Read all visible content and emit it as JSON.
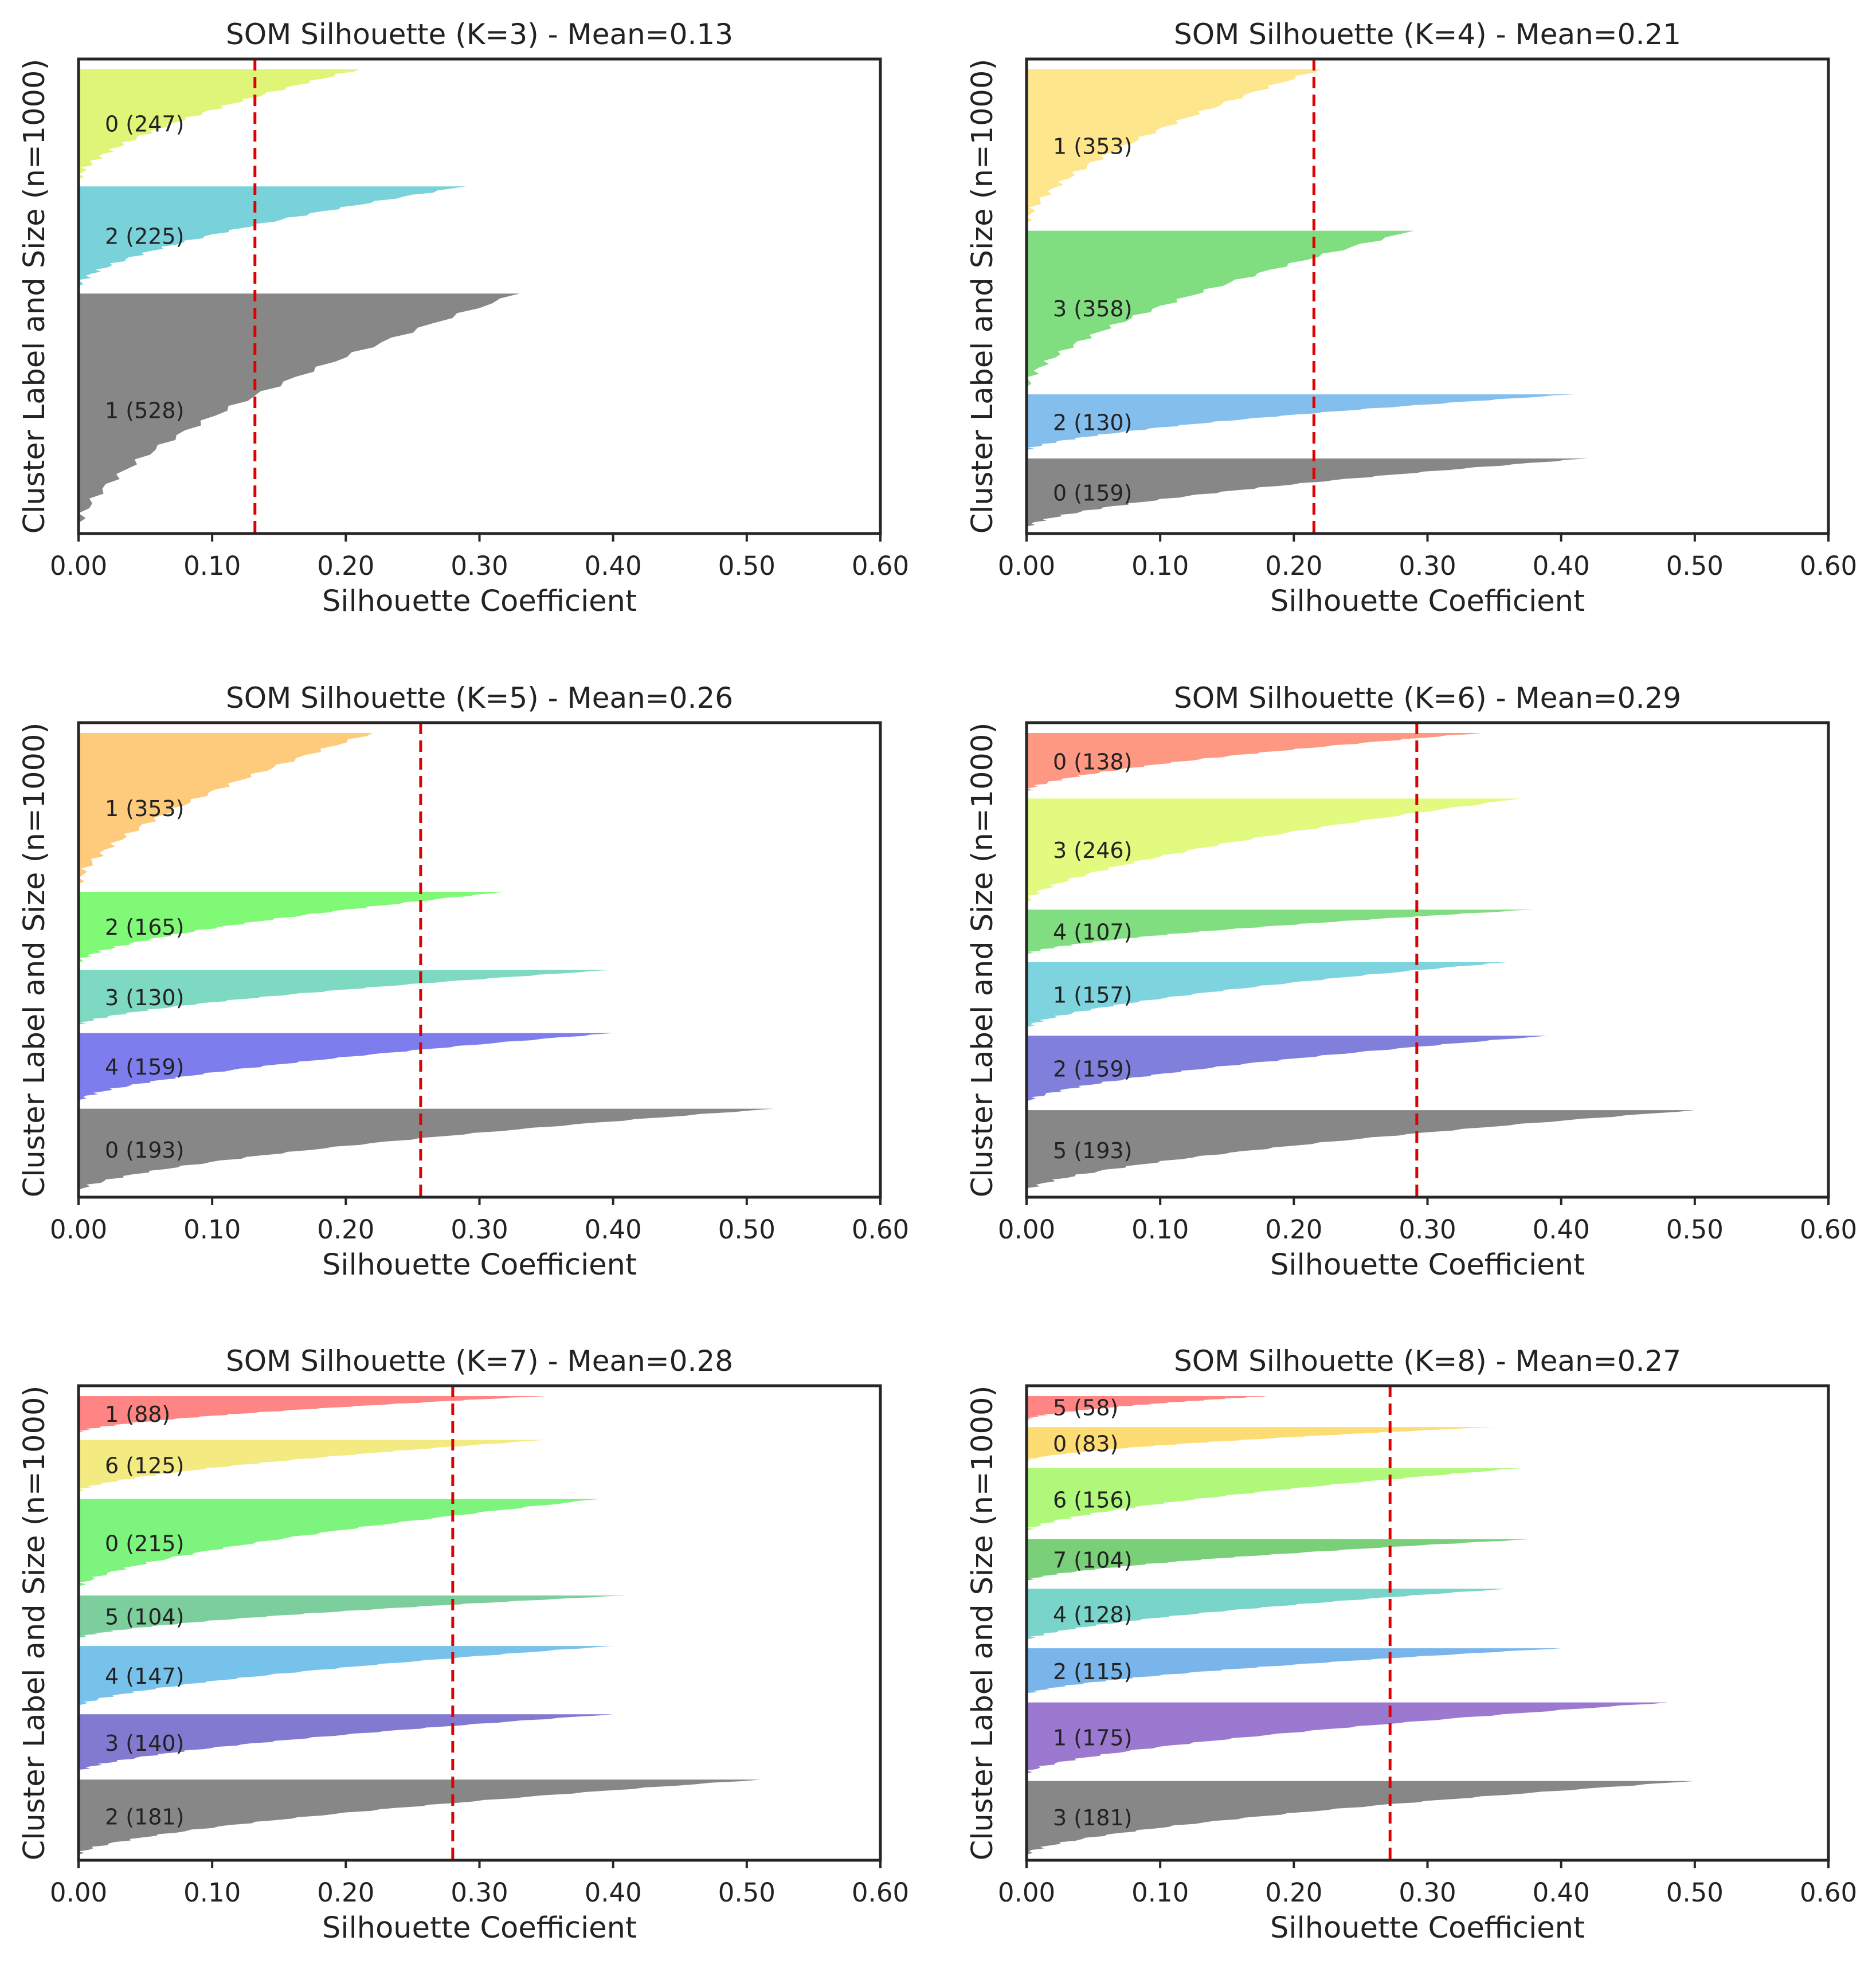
{
  "chart_data": [
    {
      "type": "area",
      "title": "SOM Silhouette (K=3) - Mean=0.13",
      "xlabel": "Silhouette Coefficient",
      "ylabel": "Cluster Label and Size (n=1000)",
      "xlim": [
        0,
        0.6
      ],
      "xticks": [
        "0.00",
        "0.10",
        "0.20",
        "0.30",
        "0.40",
        "0.50",
        "0.60"
      ],
      "mean": 0.132,
      "clusters": [
        {
          "label": "0  (247)",
          "size": 247,
          "max": 0.21,
          "color": "#d9f35f"
        },
        {
          "label": "2  (225)",
          "size": 225,
          "max": 0.29,
          "color": "#62c9d4"
        },
        {
          "label": "1  (528)",
          "size": 528,
          "max": 0.33,
          "color": "#727272"
        }
      ]
    },
    {
      "type": "area",
      "title": "SOM Silhouette (K=4) - Mean=0.21",
      "xlabel": "Silhouette Coefficient",
      "ylabel": "Cluster Label and Size (n=1000)",
      "xlim": [
        0,
        0.6
      ],
      "xticks": [
        "0.00",
        "0.10",
        "0.20",
        "0.30",
        "0.40",
        "0.50",
        "0.60"
      ],
      "mean": 0.215,
      "clusters": [
        {
          "label": "1  (353)",
          "size": 353,
          "max": 0.22,
          "color": "#fde277"
        },
        {
          "label": "3  (358)",
          "size": 358,
          "max": 0.29,
          "color": "#6ad86a"
        },
        {
          "label": "2  (130)",
          "size": 130,
          "max": 0.41,
          "color": "#6eb3ea"
        },
        {
          "label": "0  (159)",
          "size": 159,
          "max": 0.42,
          "color": "#727272"
        }
      ]
    },
    {
      "type": "area",
      "title": "SOM Silhouette (K=5) - Mean=0.26",
      "xlabel": "Silhouette Coefficient",
      "ylabel": "Cluster Label and Size (n=1000)",
      "xlim": [
        0,
        0.6
      ],
      "xticks": [
        "0.00",
        "0.10",
        "0.20",
        "0.30",
        "0.40",
        "0.50",
        "0.60"
      ],
      "mean": 0.256,
      "clusters": [
        {
          "label": "1  (353)",
          "size": 353,
          "max": 0.22,
          "color": "#fec265"
        },
        {
          "label": "2  (165)",
          "size": 165,
          "max": 0.32,
          "color": "#6af85e"
        },
        {
          "label": "3  (130)",
          "size": 130,
          "max": 0.4,
          "color": "#66d2b6"
        },
        {
          "label": "4  (159)",
          "size": 159,
          "max": 0.4,
          "color": "#6666ea"
        },
        {
          "label": "0  (193)",
          "size": 193,
          "max": 0.52,
          "color": "#727272"
        }
      ]
    },
    {
      "type": "area",
      "title": "SOM Silhouette (K=6) - Mean=0.29",
      "xlabel": "Silhouette Coefficient",
      "ylabel": "Cluster Label and Size (n=1000)",
      "xlim": [
        0,
        0.6
      ],
      "xticks": [
        "0.00",
        "0.10",
        "0.20",
        "0.30",
        "0.40",
        "0.50",
        "0.60"
      ],
      "mean": 0.292,
      "clusters": [
        {
          "label": "0  (138)",
          "size": 138,
          "max": 0.34,
          "color": "#ff866c"
        },
        {
          "label": "3  (246)",
          "size": 246,
          "max": 0.37,
          "color": "#ddf96a"
        },
        {
          "label": "4  (107)",
          "size": 107,
          "max": 0.38,
          "color": "#6ad86a"
        },
        {
          "label": "1  (157)",
          "size": 157,
          "max": 0.36,
          "color": "#66cdd8"
        },
        {
          "label": "2  (159)",
          "size": 159,
          "max": 0.39,
          "color": "#6a6ad6"
        },
        {
          "label": "5  (193)",
          "size": 193,
          "max": 0.5,
          "color": "#727272"
        }
      ]
    },
    {
      "type": "area",
      "title": "SOM Silhouette (K=7) - Mean=0.28",
      "xlabel": "Silhouette Coefficient",
      "ylabel": "Cluster Label and Size (n=1000)",
      "xlim": [
        0,
        0.6
      ],
      "xticks": [
        "0.00",
        "0.10",
        "0.20",
        "0.30",
        "0.40",
        "0.50",
        "0.60"
      ],
      "mean": 0.28,
      "clusters": [
        {
          "label": "1  (88)",
          "size": 88,
          "max": 0.35,
          "color": "#ff6e6e"
        },
        {
          "label": "6  (125)",
          "size": 125,
          "max": 0.35,
          "color": "#f2e66c"
        },
        {
          "label": "0  (215)",
          "size": 215,
          "max": 0.39,
          "color": "#66f266"
        },
        {
          "label": "5  (104)",
          "size": 104,
          "max": 0.41,
          "color": "#66c68c"
        },
        {
          "label": "4  (147)",
          "size": 147,
          "max": 0.4,
          "color": "#5fb7e8"
        },
        {
          "label": "3  (140)",
          "size": 140,
          "max": 0.4,
          "color": "#6c62c8"
        },
        {
          "label": "2  (181)",
          "size": 181,
          "max": 0.51,
          "color": "#727272"
        }
      ]
    },
    {
      "type": "area",
      "title": "SOM Silhouette (K=8) - Mean=0.27",
      "xlabel": "Silhouette Coefficient",
      "ylabel": "Cluster Label and Size (n=1000)",
      "xlim": [
        0,
        0.6
      ],
      "xticks": [
        "0.00",
        "0.10",
        "0.20",
        "0.30",
        "0.40",
        "0.50",
        "0.60"
      ],
      "mean": 0.272,
      "clusters": [
        {
          "label": "5  (58)",
          "size": 58,
          "max": 0.18,
          "color": "#ff6e6e"
        },
        {
          "label": "0  (83)",
          "size": 83,
          "max": 0.35,
          "color": "#fdd65c"
        },
        {
          "label": "6  (156)",
          "size": 156,
          "max": 0.37,
          "color": "#a2f762"
        },
        {
          "label": "7  (104)",
          "size": 104,
          "max": 0.38,
          "color": "#62c862"
        },
        {
          "label": "4  (128)",
          "size": 128,
          "max": 0.36,
          "color": "#62cdc0"
        },
        {
          "label": "2  (115)",
          "size": 115,
          "max": 0.4,
          "color": "#62a8e8"
        },
        {
          "label": "1  (175)",
          "size": 175,
          "max": 0.48,
          "color": "#8a62c8"
        },
        {
          "label": "3  (181)",
          "size": 181,
          "max": 0.5,
          "color": "#727272"
        }
      ]
    }
  ]
}
